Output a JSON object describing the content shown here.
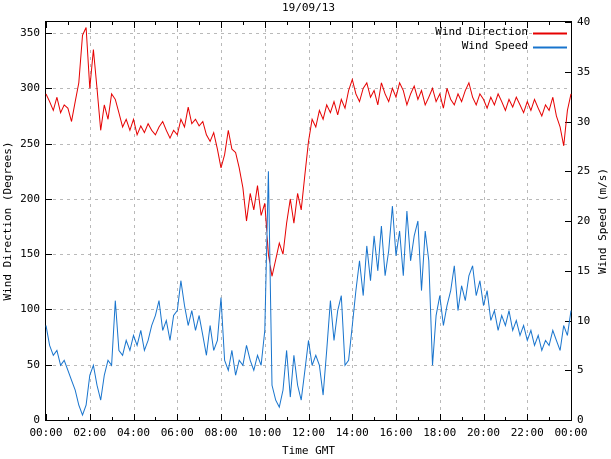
{
  "chart_data": {
    "type": "line",
    "title": "19/09/13",
    "xlabel": "Time GMT",
    "ylabel_left": "Wind Direction (Degrees)",
    "ylabel_right": "Wind Speed (m/s)",
    "x_start_minutes": 0,
    "x_step_minutes": 10,
    "xlim_minutes": [
      0,
      1440
    ],
    "x_tick_labels": [
      "00:00",
      "02:00",
      "04:00",
      "06:00",
      "08:00",
      "10:00",
      "12:00",
      "14:00",
      "16:00",
      "18:00",
      "20:00",
      "22:00",
      "00:00"
    ],
    "x_minor_tick_every_hours": 1,
    "ylim_left": [
      0,
      360
    ],
    "y_left_ticks": [
      0,
      50,
      100,
      150,
      200,
      250,
      300,
      350
    ],
    "ylim_right": [
      0,
      40
    ],
    "y_right_ticks": [
      0,
      5,
      10,
      15,
      20,
      25,
      30,
      35,
      40
    ],
    "grid": "dashed gray at major ticks, both axes",
    "legend_position": "top-right inside plot",
    "colors": {
      "border": "#000000",
      "grid": "#b9b9b9",
      "text": "#000000",
      "background": "#ffffff"
    },
    "series": [
      {
        "name": "Wind Direction",
        "axis": "left",
        "units": "degrees",
        "color": "#e60000",
        "values": [
          295,
          288,
          280,
          292,
          278,
          285,
          282,
          270,
          288,
          305,
          348,
          355,
          300,
          335,
          300,
          262,
          285,
          272,
          295,
          290,
          278,
          265,
          272,
          262,
          272,
          258,
          266,
          260,
          268,
          262,
          258,
          265,
          270,
          262,
          255,
          262,
          258,
          272,
          265,
          283,
          268,
          272,
          266,
          270,
          258,
          252,
          260,
          245,
          228,
          240,
          262,
          245,
          242,
          228,
          210,
          180,
          205,
          190,
          212,
          185,
          196,
          150,
          130,
          145,
          160,
          150,
          178,
          200,
          178,
          205,
          190,
          222,
          252,
          272,
          265,
          280,
          272,
          285,
          278,
          288,
          276,
          290,
          282,
          298,
          308,
          295,
          288,
          300,
          305,
          292,
          298,
          285,
          305,
          295,
          288,
          300,
          292,
          305,
          298,
          285,
          295,
          302,
          290,
          298,
          285,
          292,
          300,
          288,
          295,
          282,
          300,
          290,
          285,
          295,
          288,
          298,
          305,
          292,
          285,
          295,
          290,
          282,
          292,
          285,
          295,
          288,
          280,
          290,
          283,
          292,
          285,
          278,
          288,
          280,
          290,
          282,
          275,
          285,
          280,
          292,
          275,
          265,
          248,
          280,
          295
        ]
      },
      {
        "name": "Wind Speed",
        "axis": "right",
        "units": "m/s",
        "color": "#1874cd",
        "values": [
          9.5,
          7.5,
          6.5,
          7.0,
          5.5,
          6.0,
          5.0,
          4.0,
          3.0,
          1.5,
          0.5,
          1.5,
          4.5,
          5.5,
          3.5,
          2.0,
          4.5,
          6.0,
          5.5,
          12.0,
          7.0,
          6.5,
          8.0,
          7.0,
          8.5,
          7.5,
          9.0,
          7.0,
          8.0,
          9.5,
          10.5,
          12.0,
          9.0,
          10.0,
          8.0,
          10.5,
          11.0,
          14.0,
          11.5,
          9.5,
          11.0,
          9.0,
          10.5,
          8.5,
          6.5,
          9.5,
          7.0,
          8.0,
          12.3,
          6.0,
          5.0,
          7.0,
          4.5,
          6.0,
          5.5,
          7.5,
          6.0,
          5.0,
          6.5,
          5.5,
          9.0,
          25.0,
          3.5,
          2.0,
          1.3,
          3.0,
          7.0,
          2.3,
          6.5,
          3.5,
          2.0,
          5.0,
          8.0,
          5.5,
          6.5,
          5.5,
          2.5,
          7.0,
          12.0,
          8.0,
          11.0,
          12.5,
          5.5,
          6.0,
          9.5,
          13.0,
          16.0,
          12.5,
          17.5,
          14.0,
          18.5,
          15.0,
          19.5,
          14.5,
          17.0,
          21.5,
          16.5,
          19.0,
          14.5,
          21.0,
          16.0,
          18.5,
          20.0,
          13.0,
          19.0,
          16.0,
          5.5,
          10.5,
          12.5,
          9.5,
          11.5,
          13.0,
          15.5,
          11.0,
          13.5,
          12.0,
          14.5,
          15.5,
          12.5,
          14.0,
          11.5,
          13.0,
          10.0,
          11.0,
          9.0,
          10.5,
          9.5,
          11.0,
          9.0,
          10.0,
          8.5,
          9.5,
          8.0,
          9.0,
          7.5,
          8.5,
          7.0,
          8.0,
          7.5,
          9.0,
          8.0,
          7.0,
          9.5,
          8.5,
          11.0
        ]
      }
    ]
  }
}
